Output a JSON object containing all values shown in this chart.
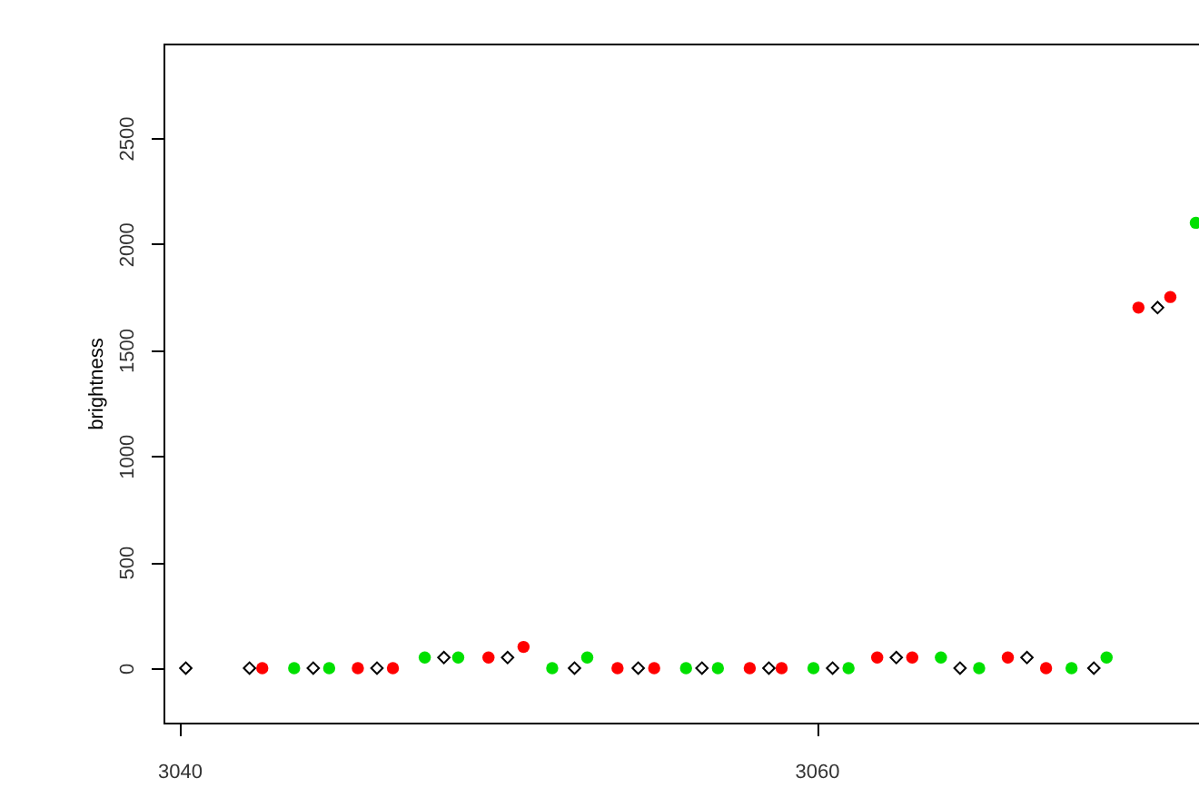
{
  "chart_data": {
    "type": "scatter",
    "ylabel": "brightness",
    "xlim": [
      3039.5,
      3072
    ],
    "ylim": [
      -257,
      2945
    ],
    "xticks": [
      3040,
      3060
    ],
    "yticks": [
      0,
      500,
      1000,
      1500,
      2000,
      2500
    ],
    "grid": false,
    "series": [
      {
        "color": "#000000",
        "marker": "diamond",
        "x": [
          3040.2,
          3042.2,
          3044.2,
          3046.2,
          3048.3,
          3050.3,
          3052.4,
          3054.4,
          3056.4,
          3058.5,
          3060.5,
          3062.5,
          3064.5,
          3066.6,
          3068.7,
          3070.7
        ],
        "values": [
          0,
          0,
          0,
          0,
          50,
          50,
          0,
          0,
          0,
          0,
          0,
          50,
          0,
          50,
          0,
          1700
        ]
      },
      {
        "color": "#ff0000",
        "marker": "circle",
        "x": [
          3042.6,
          3045.6,
          3046.7,
          3049.7,
          3050.8,
          3053.75,
          3054.9,
          3057.9,
          3058.9,
          3061.9,
          3063,
          3066,
          3067.2,
          3070.1,
          3071.1
        ],
        "values": [
          0,
          0,
          0,
          50,
          100,
          0,
          0,
          0,
          0,
          50,
          50,
          50,
          0,
          1700,
          1750
        ]
      },
      {
        "color": "#00e000",
        "marker": "circle",
        "x": [
          3043.6,
          3044.7,
          3047.7,
          3048.75,
          3051.7,
          3052.8,
          3055.9,
          3056.9,
          3059.9,
          3061,
          3063.9,
          3065.1,
          3068,
          3069.1,
          3071.9
        ],
        "values": [
          0,
          0,
          50,
          50,
          0,
          50,
          0,
          0,
          0,
          0,
          50,
          0,
          0,
          50,
          2100
        ]
      }
    ]
  }
}
